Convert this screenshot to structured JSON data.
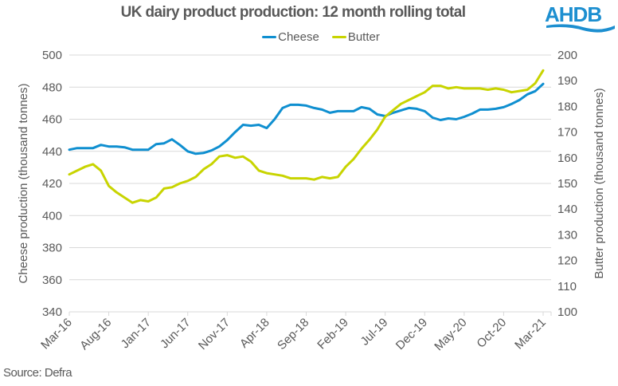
{
  "logo": {
    "text": "AHDB",
    "color": "#1d8fd0"
  },
  "source_note": "Source:  Defra",
  "chart_data": {
    "type": "line",
    "title": "UK dairy product production: 12 month rolling total",
    "xlabel": "",
    "ylabel_left": "Cheese production (thousand tonnes)",
    "ylabel_right": "Butter production (thousand tonnes)",
    "ylim_left": [
      340,
      500
    ],
    "ylim_right": [
      100,
      200
    ],
    "yticks_left": [
      340,
      360,
      380,
      400,
      420,
      440,
      460,
      480,
      500
    ],
    "yticks_right": [
      100,
      110,
      120,
      130,
      140,
      150,
      160,
      170,
      180,
      190,
      200
    ],
    "x_tick_labels": [
      "Mar-16",
      "Aug-16",
      "Jan-17",
      "Jun-17",
      "Nov-17",
      "Apr-18",
      "Sep-18",
      "Feb-19",
      "Jul-19",
      "Dec-19",
      "May-20",
      "Oct-20",
      "Mar-21"
    ],
    "x_tick_every_months": 5,
    "months_count": 61,
    "grid": true,
    "legend_position": "top-center",
    "series": [
      {
        "name": "Cheese",
        "axis": "left",
        "color": "#0f8fd0",
        "values": [
          441,
          442,
          442,
          442,
          444,
          443,
          443,
          442.5,
          441,
          441,
          441,
          444.5,
          445,
          447.5,
          444,
          440,
          438.5,
          439,
          440.5,
          443,
          447,
          452,
          456.5,
          456,
          456.5,
          454.5,
          460,
          467,
          469,
          469,
          468.5,
          467,
          466,
          464,
          465,
          465,
          465,
          467.5,
          466.5,
          463,
          462,
          464,
          465.5,
          467,
          466.5,
          465,
          461,
          459.5,
          460.5,
          460,
          461.5,
          463.5,
          466,
          466,
          466.5,
          467.5,
          469.5,
          472,
          475.5,
          477.5,
          482
        ]
      },
      {
        "name": "Butter",
        "axis": "right",
        "color": "#c8d400",
        "values": [
          153.5,
          155,
          156.5,
          157.5,
          155,
          149,
          146.5,
          144.5,
          142.5,
          143.5,
          143,
          144.5,
          148,
          148.5,
          150,
          151,
          152.5,
          155.5,
          157.5,
          160.5,
          161,
          160,
          160.5,
          158.5,
          155,
          154,
          153.5,
          153,
          152,
          152,
          152,
          151.5,
          152.5,
          152,
          152.5,
          156.5,
          159.5,
          163.5,
          167,
          171,
          176,
          178.5,
          181,
          182.5,
          184,
          185.5,
          188,
          188,
          187,
          187.5,
          187,
          187,
          187,
          186.5,
          187,
          186.5,
          185.5,
          186,
          186.5,
          189,
          194
        ]
      }
    ]
  }
}
